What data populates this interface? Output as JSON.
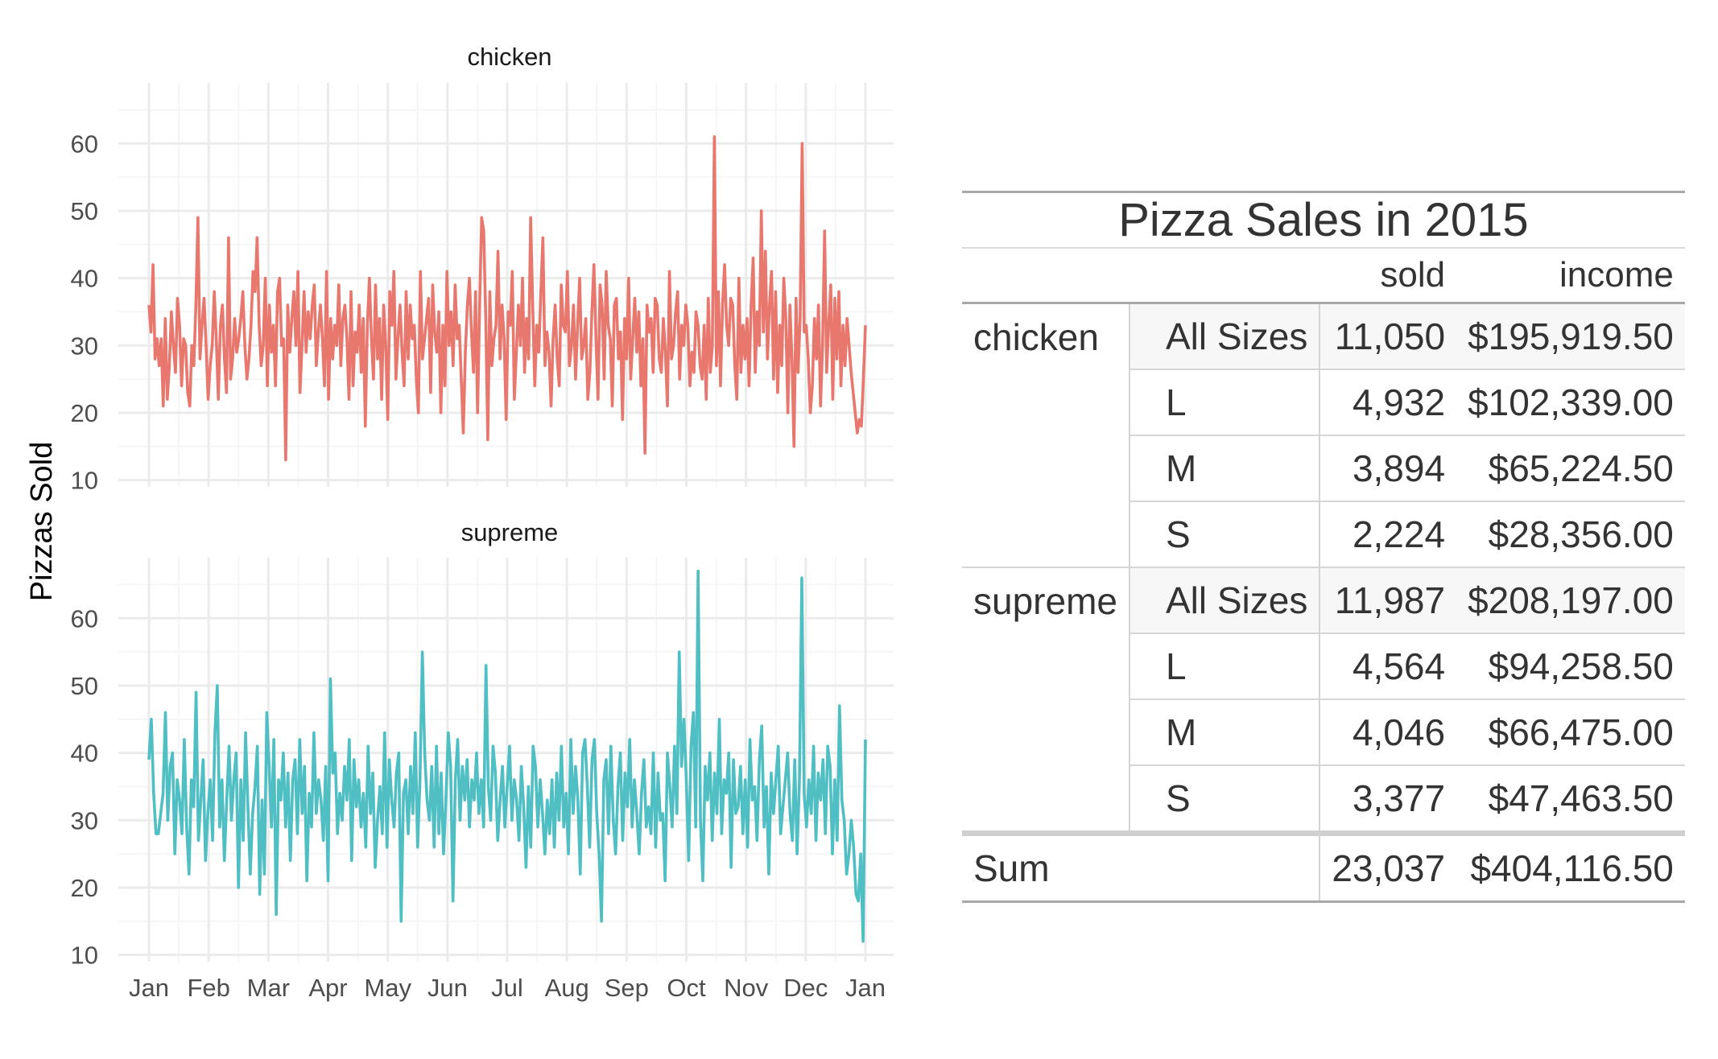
{
  "chart_data": {
    "type": "line",
    "layout": "facets-stacked",
    "ylabel": "Pizzas Sold",
    "xlabel": "",
    "ylim": [
      9,
      69
    ],
    "yticks": [
      10,
      20,
      30,
      40,
      50,
      60
    ],
    "xticks": [
      "Jan",
      "Feb",
      "Mar",
      "Apr",
      "May",
      "Jun",
      "Jul",
      "Aug",
      "Sep",
      "Oct",
      "Nov",
      "Dec",
      "Jan"
    ],
    "grid": true,
    "series": [
      {
        "name": "chicken",
        "color": "#E8776E",
        "values": [
          36,
          32,
          42,
          28,
          31,
          27,
          31,
          21,
          34,
          22,
          27,
          35,
          30,
          26,
          37,
          33,
          24,
          31,
          30,
          23,
          21,
          30,
          27,
          36,
          49,
          28,
          33,
          37,
          30,
          22,
          27,
          30,
          38,
          31,
          22,
          33,
          36,
          28,
          23,
          46,
          25,
          28,
          34,
          29,
          31,
          34,
          38,
          30,
          25,
          28,
          33,
          41,
          38,
          46,
          33,
          27,
          30,
          40,
          24,
          36,
          29,
          33,
          24,
          38,
          40,
          30,
          31,
          13,
          36,
          29,
          34,
          38,
          30,
          41,
          23,
          30,
          38,
          29,
          35,
          31,
          36,
          39,
          27,
          32,
          36,
          31,
          24,
          41,
          22,
          34,
          28,
          33,
          30,
          39,
          27,
          34,
          36,
          31,
          22,
          38,
          24,
          32,
          29,
          36,
          26,
          34,
          18,
          33,
          40,
          31,
          25,
          39,
          28,
          34,
          22,
          36,
          30,
          19,
          38,
          33,
          41,
          25,
          31,
          36,
          29,
          24,
          38,
          28,
          36,
          31,
          33,
          25,
          20,
          41,
          28,
          31,
          34,
          37,
          23,
          39,
          32,
          29,
          35,
          20,
          33,
          24,
          41,
          30,
          35,
          27,
          39,
          31,
          33,
          25,
          17,
          29,
          36,
          40,
          32,
          26,
          38,
          20,
          36,
          49,
          47,
          34,
          16,
          38,
          27,
          31,
          33,
          44,
          28,
          36,
          31,
          19,
          35,
          33,
          41,
          22,
          29,
          36,
          30,
          40,
          26,
          34,
          28,
          49,
          36,
          24,
          33,
          29,
          38,
          46,
          27,
          32,
          29,
          21,
          31,
          36,
          28,
          24,
          39,
          33,
          32,
          41,
          27,
          30,
          36,
          25,
          33,
          40,
          28,
          30,
          34,
          22,
          26,
          35,
          42,
          31,
          22,
          39,
          36,
          25,
          41,
          33,
          31,
          21,
          36,
          37,
          28,
          32,
          19,
          34,
          28,
          40,
          25,
          31,
          37,
          29,
          35,
          24,
          31,
          14,
          36,
          32,
          34,
          26,
          37,
          36,
          28,
          26,
          34,
          29,
          21,
          41,
          28,
          30,
          35,
          38,
          25,
          33,
          30,
          36,
          33,
          24,
          29,
          26,
          35,
          33,
          27,
          25,
          33,
          22,
          37,
          26,
          30,
          61,
          27,
          38,
          24,
          36,
          42,
          33,
          30,
          37,
          36,
          27,
          22,
          40,
          26,
          33,
          28,
          34,
          24,
          36,
          43,
          26,
          35,
          30,
          50,
          32,
          44,
          28,
          36,
          41,
          25,
          38,
          23,
          33,
          27,
          40,
          34,
          20,
          36,
          28,
          15,
          37,
          26,
          34,
          60,
          32,
          33,
          28,
          20,
          24,
          34,
          28,
          36,
          21,
          30,
          47,
          26,
          33,
          39,
          22,
          37,
          28,
          38,
          24,
          33,
          27,
          34,
          30,
          26,
          23,
          20,
          17,
          19,
          18,
          25,
          33
        ]
      },
      {
        "name": "supreme",
        "color": "#4FBFC4",
        "values": [
          39,
          45,
          34,
          28,
          28,
          31,
          34,
          46,
          30,
          38,
          40,
          25,
          36,
          33,
          28,
          42,
          29,
          22,
          36,
          32,
          49,
          27,
          33,
          39,
          24,
          31,
          36,
          27,
          43,
          50,
          29,
          36,
          24,
          33,
          41,
          30,
          36,
          40,
          20,
          36,
          27,
          43,
          32,
          22,
          31,
          35,
          41,
          19,
          33,
          22,
          46,
          38,
          29,
          42,
          16,
          36,
          33,
          40,
          29,
          37,
          24,
          36,
          39,
          28,
          42,
          31,
          38,
          21,
          34,
          29,
          43,
          31,
          36,
          33,
          27,
          38,
          21,
          51,
          37,
          40,
          28,
          34,
          30,
          38,
          33,
          42,
          24,
          39,
          32,
          36,
          29,
          34,
          26,
          41,
          31,
          37,
          23,
          30,
          35,
          28,
          43,
          26,
          39,
          33,
          29,
          37,
          40,
          15,
          34,
          36,
          28,
          38,
          31,
          43,
          26,
          36,
          55,
          40,
          33,
          30,
          38,
          26,
          41,
          28,
          37,
          25,
          33,
          43,
          38,
          18,
          36,
          42,
          30,
          38,
          33,
          39,
          29,
          36,
          33,
          40,
          31,
          36,
          29,
          53,
          35,
          30,
          41,
          37,
          27,
          33,
          38,
          29,
          35,
          41,
          30,
          36,
          33,
          27,
          38,
          32,
          23,
          35,
          26,
          41,
          38,
          29,
          36,
          31,
          25,
          33,
          28,
          36,
          26,
          37,
          30,
          41,
          29,
          34,
          25,
          42,
          31,
          38,
          33,
          22,
          40,
          42,
          35,
          26,
          39,
          42,
          31,
          25,
          15,
          36,
          39,
          28,
          41,
          30,
          25,
          35,
          40,
          27,
          37,
          32,
          42,
          29,
          36,
          31,
          25,
          34,
          39,
          29,
          32,
          28,
          40,
          26,
          37,
          30,
          31,
          21,
          40,
          35,
          29,
          41,
          31,
          55,
          38,
          45,
          36,
          24,
          41,
          46,
          29,
          67,
          30,
          21,
          38,
          33,
          40,
          27,
          37,
          31,
          45,
          28,
          36,
          34,
          40,
          23,
          39,
          31,
          32,
          38,
          28,
          36,
          26,
          42,
          33,
          35,
          27,
          39,
          44,
          29,
          35,
          22,
          37,
          31,
          36,
          41,
          28,
          32,
          36,
          40,
          31,
          27,
          39,
          25,
          36,
          66,
          34,
          29,
          36,
          31,
          41,
          27,
          37,
          33,
          39,
          28,
          41,
          38,
          25,
          36,
          27,
          47,
          33,
          30,
          22,
          25,
          30,
          26,
          19,
          18,
          25,
          12,
          42
        ]
      }
    ]
  },
  "table": {
    "caption": "Pizza Sales in 2015",
    "columns": [
      "sold",
      "income"
    ],
    "groups": [
      {
        "name": "chicken",
        "rows": [
          {
            "size": "All Sizes",
            "sold": "11,050",
            "income": "$195,919.50"
          },
          {
            "size": "L",
            "sold": "4,932",
            "income": "$102,339.00"
          },
          {
            "size": "M",
            "sold": "3,894",
            "income": "$65,224.50"
          },
          {
            "size": "S",
            "sold": "2,224",
            "income": "$28,356.00"
          }
        ]
      },
      {
        "name": "supreme",
        "rows": [
          {
            "size": "All Sizes",
            "sold": "11,987",
            "income": "$208,197.00"
          },
          {
            "size": "L",
            "sold": "4,564",
            "income": "$94,258.50"
          },
          {
            "size": "M",
            "sold": "4,046",
            "income": "$66,475.00"
          },
          {
            "size": "S",
            "sold": "3,377",
            "income": "$47,463.50"
          }
        ]
      }
    ],
    "summary": {
      "label": "Sum",
      "sold": "23,037",
      "income": "$404,116.50"
    }
  }
}
